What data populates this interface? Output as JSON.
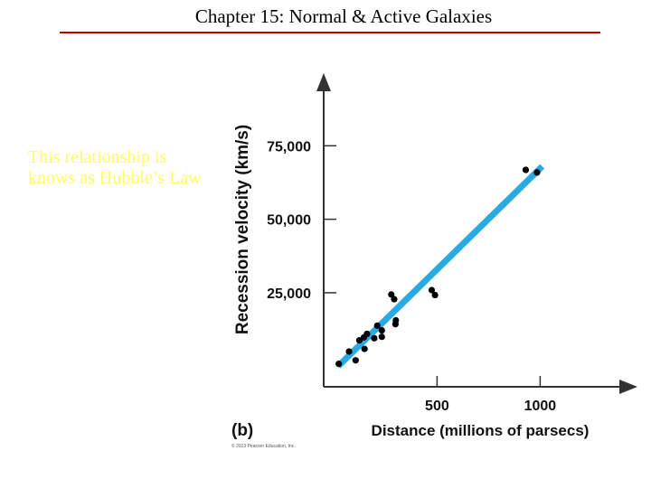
{
  "slide": {
    "title": "Chapter 15: Normal & Active Galaxies",
    "caption": "This relationship is knows as Hubble’s Law"
  },
  "chart_data": {
    "type": "scatter",
    "panel_label": "(b)",
    "credit": "© 2013 Pearson Education, Inc.",
    "xlabel": "Distance (millions of parsecs)",
    "ylabel": "Recession velocity (km/s)",
    "xlim": [
      -50,
      1450
    ],
    "ylim": [
      -7000,
      100000
    ],
    "xticks": [
      {
        "value": 500,
        "label": "500"
      },
      {
        "value": 1000,
        "label": "1000"
      }
    ],
    "yticks": [
      {
        "value": 25000,
        "label": "25,000"
      },
      {
        "value": 50000,
        "label": "50,000"
      },
      {
        "value": 75000,
        "label": "75,000"
      }
    ],
    "points": [
      {
        "x": 23,
        "y": 800
      },
      {
        "x": 73,
        "y": 5000
      },
      {
        "x": 105,
        "y": 2000
      },
      {
        "x": 123,
        "y": 8800
      },
      {
        "x": 145,
        "y": 9800
      },
      {
        "x": 148,
        "y": 5900
      },
      {
        "x": 160,
        "y": 11000
      },
      {
        "x": 195,
        "y": 9500
      },
      {
        "x": 210,
        "y": 13800
      },
      {
        "x": 232,
        "y": 10000
      },
      {
        "x": 232,
        "y": 12200
      },
      {
        "x": 278,
        "y": 24400
      },
      {
        "x": 292,
        "y": 22800
      },
      {
        "x": 298,
        "y": 14300
      },
      {
        "x": 300,
        "y": 15600
      },
      {
        "x": 474,
        "y": 25900
      },
      {
        "x": 490,
        "y": 24200
      },
      {
        "x": 930,
        "y": 66800
      },
      {
        "x": 985,
        "y": 65900
      }
    ],
    "fit_line": {
      "x": [
        20,
        1010
      ],
      "y": [
        0,
        68000
      ],
      "color": "#29aae2"
    },
    "point_color": "#000000"
  }
}
